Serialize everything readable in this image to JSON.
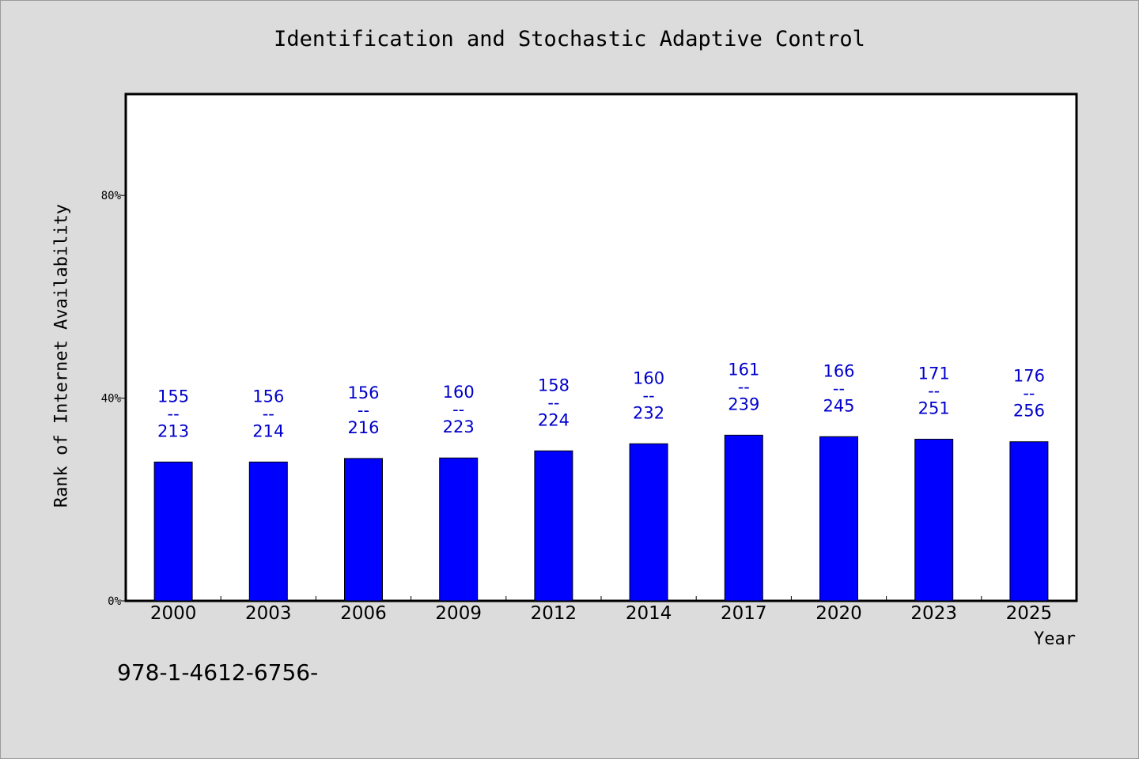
{
  "chart_data": {
    "type": "bar",
    "title": "Identification and Stochastic Adaptive Control",
    "xlabel": "Year",
    "ylabel": "Rank of Internet Availability",
    "ylim": [
      0,
      100
    ],
    "yticks": [
      {
        "value": 0,
        "label": "0%"
      },
      {
        "value": 40,
        "label": "40%"
      },
      {
        "value": 80,
        "label": "80%"
      }
    ],
    "categories": [
      "2000",
      "2003",
      "2006",
      "2009",
      "2012",
      "2014",
      "2017",
      "2020",
      "2023",
      "2025"
    ],
    "values": [
      27.4,
      27.4,
      28.1,
      28.2,
      29.6,
      31.0,
      32.7,
      32.4,
      31.9,
      31.4
    ],
    "labels": [
      {
        "top": "155",
        "mid": "--",
        "bottom": "213"
      },
      {
        "top": "156",
        "mid": "--",
        "bottom": "214"
      },
      {
        "top": "156",
        "mid": "--",
        "bottom": "216"
      },
      {
        "top": "160",
        "mid": "--",
        "bottom": "223"
      },
      {
        "top": "158",
        "mid": "--",
        "bottom": "224"
      },
      {
        "top": "160",
        "mid": "--",
        "bottom": "232"
      },
      {
        "top": "161",
        "mid": "--",
        "bottom": "239"
      },
      {
        "top": "166",
        "mid": "--",
        "bottom": "245"
      },
      {
        "top": "171",
        "mid": "--",
        "bottom": "251"
      },
      {
        "top": "176",
        "mid": "--",
        "bottom": "256"
      }
    ],
    "grid": false,
    "bar_color": "#0000ff",
    "label_color": "#0000cc"
  },
  "footnote": "978-1-4612-6756-"
}
